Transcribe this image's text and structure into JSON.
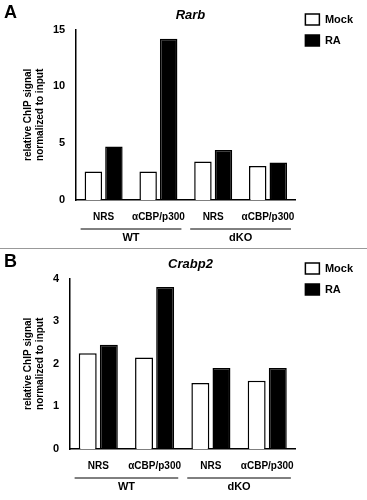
{
  "chart_data": [
    {
      "type": "bar",
      "panel_label": "A",
      "title": "Rarb",
      "y_label": "relative ChIP signal normalized to input",
      "categories": [
        "NRS",
        "αCBP/p300",
        "NRS",
        "αCBP/p300"
      ],
      "groups": [
        {
          "label": "WT",
          "size": 2
        },
        {
          "label": "dKO",
          "size": 2
        }
      ],
      "series": [
        {
          "name": "Mock",
          "color": "#ffffff",
          "values": [
            2.5,
            2.5,
            3.4,
            3.0
          ]
        },
        {
          "name": "RA",
          "color": "#000000",
          "values": [
            4.7,
            14.2,
            4.4,
            3.3
          ]
        }
      ],
      "ylim": [
        0,
        15
      ],
      "yticks": [
        0,
        5,
        10,
        15
      ],
      "grid": false,
      "legend": "right"
    },
    {
      "type": "bar",
      "panel_label": "B",
      "title": "Crabp2",
      "y_label": "relative ChIP signal normalized to input",
      "categories": [
        "NRS",
        "αCBP/p300",
        "NRS",
        "αCBP/p300"
      ],
      "groups": [
        {
          "label": "WT",
          "size": 2
        },
        {
          "label": "dKO",
          "size": 2
        }
      ],
      "series": [
        {
          "name": "Mock",
          "color": "#ffffff",
          "values": [
            2.25,
            2.15,
            1.55,
            1.6
          ]
        },
        {
          "name": "RA",
          "color": "#000000",
          "values": [
            2.45,
            3.8,
            1.9,
            1.9
          ]
        }
      ],
      "ylim": [
        0,
        4
      ],
      "yticks": [
        0,
        1,
        2,
        3,
        4
      ],
      "grid": false,
      "legend": "right"
    }
  ]
}
